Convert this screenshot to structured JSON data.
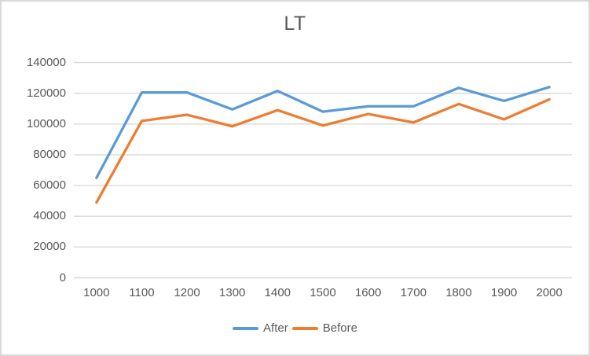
{
  "chart_data": {
    "type": "line",
    "title": "LT",
    "categories": [
      "1000",
      "1100",
      "1200",
      "1300",
      "1400",
      "1500",
      "1600",
      "1700",
      "1800",
      "1900",
      "2000"
    ],
    "series": [
      {
        "name": "After",
        "color": "#5B9BD5",
        "values": [
          65000,
          120500,
          120500,
          109500,
          121500,
          108000,
          111500,
          111500,
          123500,
          115000,
          124000
        ]
      },
      {
        "name": "Before",
        "color": "#ED7D31",
        "values": [
          49000,
          102000,
          106000,
          98500,
          109000,
          99000,
          106500,
          101000,
          113000,
          103000,
          116000
        ]
      }
    ],
    "xlabel": "",
    "ylabel": "",
    "ylim": [
      0,
      140000
    ],
    "ytick_step": 20000,
    "yticks": [
      0,
      20000,
      40000,
      60000,
      80000,
      100000,
      120000,
      140000
    ],
    "grid": true,
    "legend_position": "bottom",
    "gridline_color": "#D9D9D9",
    "text_color": "#595959",
    "background": "#FFFFFF",
    "border_color": "#D9D9D9"
  }
}
